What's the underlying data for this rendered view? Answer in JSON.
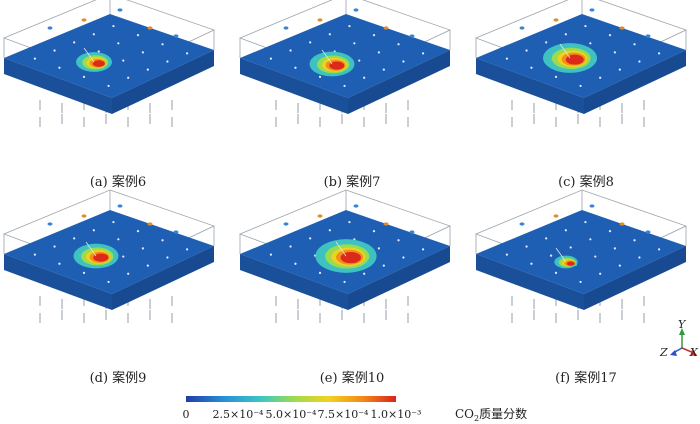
{
  "panels": [
    {
      "caption": "(a) 案例6"
    },
    {
      "caption": "(b) 案例7"
    },
    {
      "caption": "(c) 案例8"
    },
    {
      "caption": "(d) 案例9"
    },
    {
      "caption": "(e) 案例10"
    },
    {
      "caption": "(f) 案例17"
    }
  ],
  "legend": {
    "ticks": [
      "0",
      "2.5×10⁻⁴",
      "5.0×10⁻⁴",
      "7.5×10⁻⁴",
      "1.0×10⁻³"
    ],
    "title_main": "CO",
    "title_sub": "2",
    "title_rest": "质量分数",
    "colors": [
      "#1f3ea6",
      "#2a8fd6",
      "#3fc6c2",
      "#9fdc4a",
      "#f2d21f",
      "#f38a18",
      "#d9241b"
    ]
  },
  "axes": {
    "y": "Y",
    "z": "Z",
    "x": "X"
  },
  "colors": {
    "plate": "#1e5fb3",
    "plate_side": "#1a4f99",
    "frame": "#9aa3ad"
  }
}
